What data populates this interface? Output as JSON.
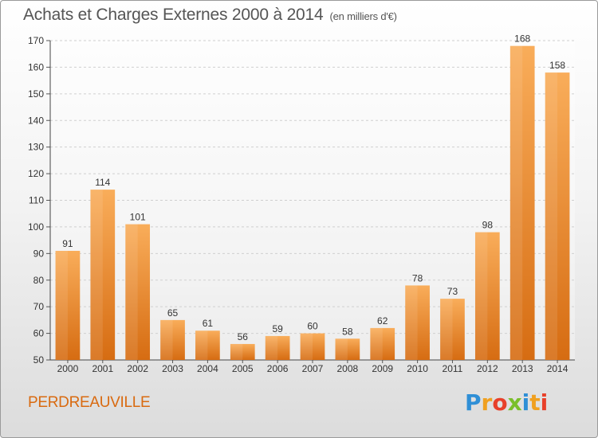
{
  "header": {
    "title": "Achats et Charges Externes 2000 à 2014",
    "unit": "(en milliers d'€)"
  },
  "footer": {
    "commune": "PERDREAUVILLE",
    "logo_letters": [
      "P",
      "r",
      "o",
      "x",
      "i",
      "t",
      "i"
    ],
    "logo_colors": [
      "#2f8fd6",
      "#f0a020",
      "#e8402a",
      "#7abf2a",
      "#2f8fd6",
      "#f0a020",
      "#e8402a"
    ]
  },
  "colors": {
    "bar_light": "#f8aa58",
    "bar_dark": "#d9741c",
    "grid": "#cfcfcf",
    "axis_text": "#333333",
    "footer_text": "#d96a10"
  },
  "chart_data": {
    "type": "bar",
    "title": "Achats et Charges Externes 2000 à 2014",
    "subtitle": "(en milliers d'€)",
    "xlabel": "",
    "ylabel": "",
    "categories": [
      "2000",
      "2001",
      "2002",
      "2003",
      "2004",
      "2005",
      "2006",
      "2007",
      "2008",
      "2009",
      "2010",
      "2011",
      "2012",
      "2013",
      "2014"
    ],
    "values": [
      91,
      114,
      101,
      65,
      61,
      56,
      59,
      60,
      58,
      62,
      78,
      73,
      98,
      168,
      158
    ],
    "ylim": [
      50,
      170
    ],
    "yticks": [
      50,
      60,
      70,
      80,
      90,
      100,
      110,
      120,
      130,
      140,
      150,
      160,
      170
    ],
    "grid": true,
    "data_labels": true
  }
}
